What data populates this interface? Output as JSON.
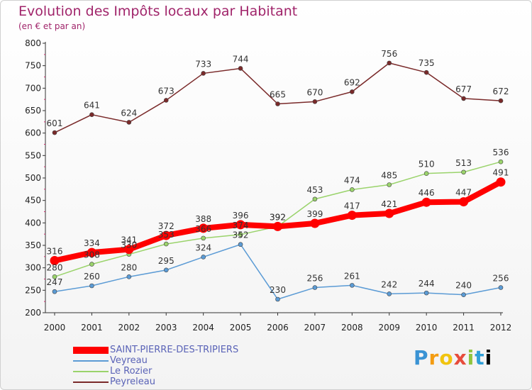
{
  "header": {
    "title": "Evolution des Impôts locaux par Habitant",
    "subtitle": "(en € et par an)"
  },
  "logo": {
    "text": "Proxiti"
  },
  "chart_data": {
    "type": "line",
    "x": [
      2000,
      2001,
      2002,
      2003,
      2004,
      2005,
      2006,
      2007,
      2008,
      2009,
      2010,
      2011,
      2012
    ],
    "ylim": [
      200,
      800
    ],
    "yticks": [
      200,
      250,
      300,
      350,
      400,
      450,
      500,
      550,
      600,
      650,
      700,
      750,
      800
    ],
    "grid": false,
    "legend_position": "bottom-left",
    "series": [
      {
        "name": "SAINT-PIERRE-DES-TRIPIERS",
        "color": "#ff0000",
        "highlight": true,
        "values": [
          316,
          334,
          341,
          372,
          388,
          396,
          392,
          399,
          417,
          421,
          446,
          447,
          491
        ]
      },
      {
        "name": "Veyreau",
        "color": "#5b9bd5",
        "values": [
          247,
          260,
          280,
          295,
          324,
          352,
          230,
          256,
          261,
          242,
          244,
          240,
          256
        ]
      },
      {
        "name": "Le Rozier",
        "color": "#9ad36b",
        "values": [
          280,
          308,
          330,
          353,
          366,
          374,
          392,
          453,
          474,
          485,
          510,
          513,
          536
        ]
      },
      {
        "name": "Peyreleau",
        "color": "#7a2a2a",
        "values": [
          601,
          641,
          624,
          673,
          733,
          744,
          665,
          670,
          692,
          756,
          735,
          677,
          672
        ]
      }
    ]
  }
}
